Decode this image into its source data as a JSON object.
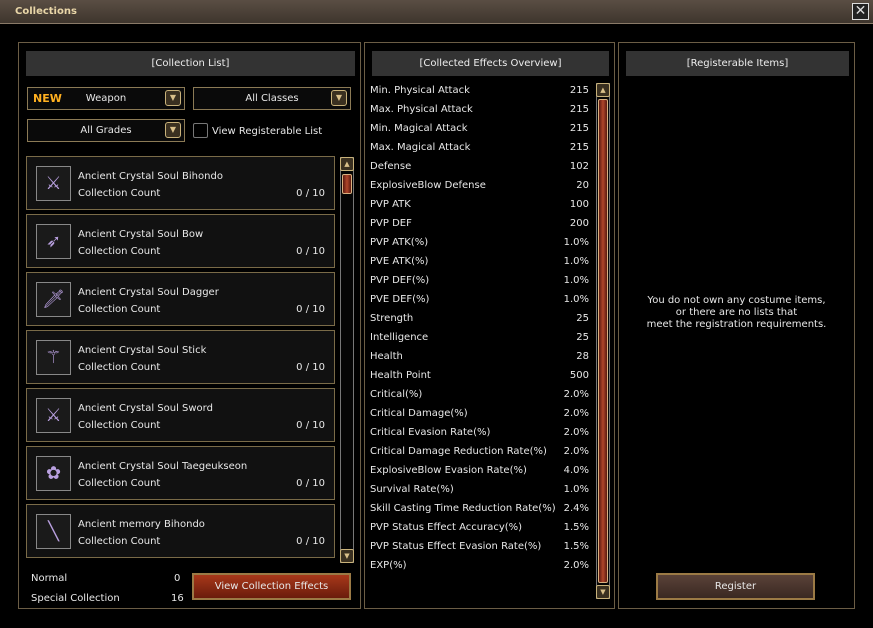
{
  "window": {
    "title": "Collections",
    "close": "✕"
  },
  "left": {
    "header": "[Collection List]",
    "new_badge": "NEW",
    "category": "Weapon",
    "classes": "All Classes",
    "grades": "All Grades",
    "registerable_label": "View Registerable List",
    "items": [
      {
        "name": "Ancient Crystal Soul Bihondo",
        "count_label": "Collection Count",
        "count": "0 / 10",
        "icon": "⚔"
      },
      {
        "name": "Ancient Crystal Soul Bow",
        "count_label": "Collection Count",
        "count": "0 / 10",
        "icon": "➶"
      },
      {
        "name": "Ancient Crystal Soul Dagger",
        "count_label": "Collection Count",
        "count": "0 / 10",
        "icon": "🗡"
      },
      {
        "name": "Ancient Crystal Soul Stick",
        "count_label": "Collection Count",
        "count": "0 / 10",
        "icon": "⚚"
      },
      {
        "name": "Ancient Crystal Soul Sword",
        "count_label": "Collection Count",
        "count": "0 / 10",
        "icon": "⚔"
      },
      {
        "name": "Ancient Crystal Soul Taegeukseon",
        "count_label": "Collection Count",
        "count": "0 / 10",
        "icon": "✿"
      },
      {
        "name": "Ancient memory Bihondo",
        "count_label": "Collection Count",
        "count": "0 / 10",
        "icon": "╲"
      }
    ],
    "normal_label": "Normal",
    "normal_value": "0",
    "special_label": "Special Collection",
    "special_value": "16",
    "view_button": "View Collection Effects"
  },
  "middle": {
    "header": "[Collected Effects Overview]",
    "stats": [
      [
        "Min. Physical Attack",
        "215"
      ],
      [
        "Max. Physical Attack",
        "215"
      ],
      [
        "Min. Magical Attack",
        "215"
      ],
      [
        "Max. Magical Attack",
        "215"
      ],
      [
        "Defense",
        "102"
      ],
      [
        "ExplosiveBlow Defense",
        "20"
      ],
      [
        "PVP ATK",
        "100"
      ],
      [
        "PVP DEF",
        "200"
      ],
      [
        "PVP ATK(%)",
        "1.0%"
      ],
      [
        "PVE ATK(%)",
        "1.0%"
      ],
      [
        "PVP DEF(%)",
        "1.0%"
      ],
      [
        "PVE DEF(%)",
        "1.0%"
      ],
      [
        "Strength",
        "25"
      ],
      [
        "Intelligence",
        "25"
      ],
      [
        "Health",
        "28"
      ],
      [
        "Health Point",
        "500"
      ],
      [
        "Critical(%)",
        "2.0%"
      ],
      [
        "Critical Damage(%)",
        "2.0%"
      ],
      [
        "Critical Evasion Rate(%)",
        "2.0%"
      ],
      [
        "Critical Damage Reduction Rate(%)",
        "2.0%"
      ],
      [
        "ExplosiveBlow Evasion Rate(%)",
        "4.0%"
      ],
      [
        "Survival Rate(%)",
        "1.0%"
      ],
      [
        "Skill Casting Time Reduction Rate(%)",
        "2.4%"
      ],
      [
        "PVP Status Effect Accuracy(%)",
        "1.5%"
      ],
      [
        "PVP Status Effect Evasion Rate(%)",
        "1.5%"
      ],
      [
        "EXP(%)",
        "2.0%"
      ]
    ]
  },
  "right": {
    "header": "[Registerable Items]",
    "message_lines": [
      "You do not own any costume items,",
      "or there are no lists that",
      "meet the registration requirements."
    ],
    "register_button": "Register"
  }
}
